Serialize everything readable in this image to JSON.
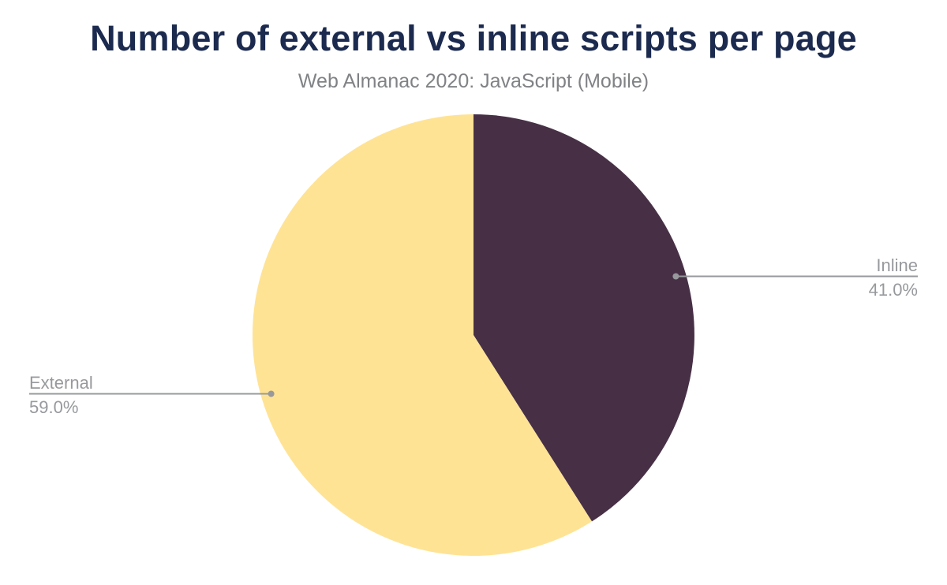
{
  "header": {
    "title": "Number of external vs inline scripts per page",
    "subtitle": "Web Almanac 2020: JavaScript (Mobile)"
  },
  "chart_data": {
    "type": "pie",
    "title": "Number of external vs inline scripts per page",
    "subtitle": "Web Almanac 2020: JavaScript (Mobile)",
    "categories": [
      "Inline",
      "External"
    ],
    "values": [
      41.0,
      59.0
    ],
    "unit": "%",
    "slice_colors": [
      "#473046",
      "#ffe395"
    ],
    "start_angle_deg": 0,
    "direction": "clockwise",
    "legend_position": "none",
    "label_style": "callout-leader-lines",
    "callouts": [
      {
        "name": "Inline",
        "value_label": "41.0%",
        "side": "right"
      },
      {
        "name": "External",
        "value_label": "59.0%",
        "side": "left"
      }
    ]
  },
  "style": {
    "background": "#ffffff",
    "title_color": "#1b2a4e",
    "subtitle_color": "#808285",
    "label_color": "#97999c",
    "leader_line_color": "#97999c",
    "leader_dot_color": "#97999c"
  }
}
